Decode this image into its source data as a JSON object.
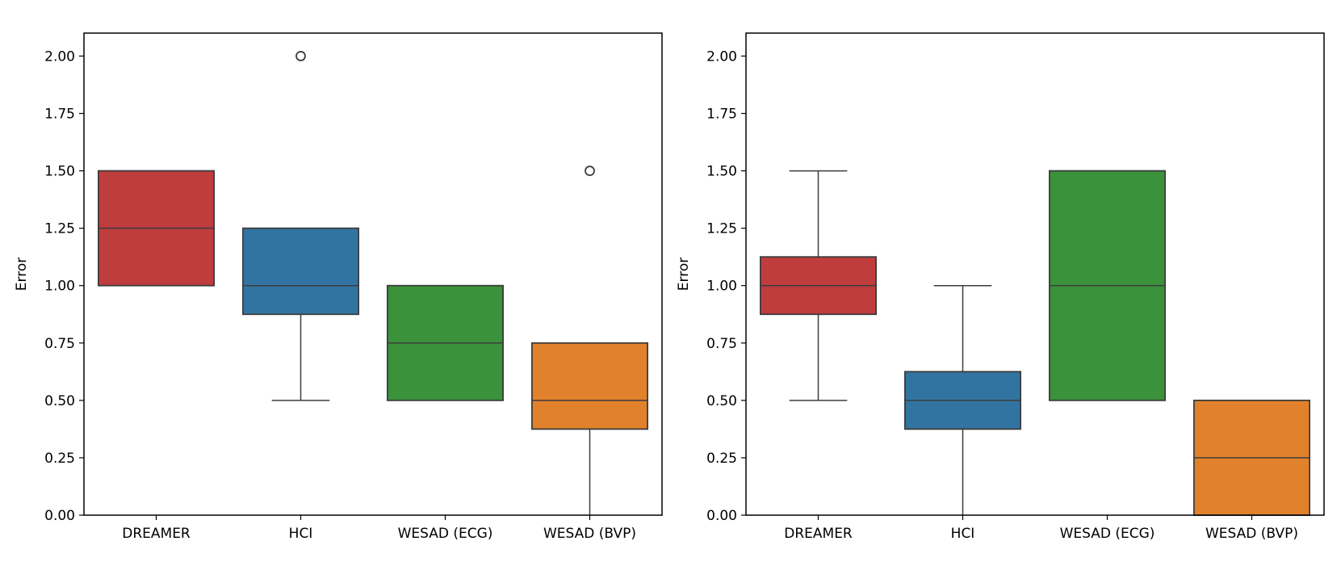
{
  "chart_data": [
    {
      "type": "box",
      "title": "",
      "xlabel": "",
      "ylabel": "Error",
      "ylim": [
        0,
        2.1
      ],
      "yticks": [
        "0.00",
        "0.25",
        "0.50",
        "0.75",
        "1.00",
        "1.25",
        "1.50",
        "1.75",
        "2.00"
      ],
      "categories": [
        "DREAMER",
        "HCI",
        "WESAD (ECG)",
        "WESAD (BVP)"
      ],
      "boxes": [
        {
          "category": "DREAMER",
          "color": "#c03d3e",
          "whisker_low": 1.0,
          "q1": 1.0,
          "median": 1.25,
          "q3": 1.5,
          "whisker_high": 1.5,
          "outliers": []
        },
        {
          "category": "HCI",
          "color": "#3274a1",
          "whisker_low": 0.5,
          "q1": 0.875,
          "median": 1.0,
          "q3": 1.25,
          "whisker_high": 1.25,
          "outliers": [
            2.0
          ]
        },
        {
          "category": "WESAD (ECG)",
          "color": "#3a923a",
          "whisker_low": 0.5,
          "q1": 0.5,
          "median": 0.75,
          "q3": 1.0,
          "whisker_high": 1.0,
          "outliers": []
        },
        {
          "category": "WESAD (BVP)",
          "color": "#e1812c",
          "whisker_low": 0.0,
          "q1": 0.375,
          "median": 0.5,
          "q3": 0.75,
          "whisker_high": 0.75,
          "outliers": [
            1.5
          ]
        }
      ]
    },
    {
      "type": "box",
      "title": "",
      "xlabel": "",
      "ylabel": "Error",
      "ylim": [
        0,
        2.1
      ],
      "yticks": [
        "0.00",
        "0.25",
        "0.50",
        "0.75",
        "1.00",
        "1.25",
        "1.50",
        "1.75",
        "2.00"
      ],
      "categories": [
        "DREAMER",
        "HCI",
        "WESAD (ECG)",
        "WESAD (BVP)"
      ],
      "boxes": [
        {
          "category": "DREAMER",
          "color": "#c03d3e",
          "whisker_low": 0.5,
          "q1": 0.875,
          "median": 1.0,
          "q3": 1.125,
          "whisker_high": 1.5,
          "outliers": []
        },
        {
          "category": "HCI",
          "color": "#3274a1",
          "whisker_low": 0.0,
          "q1": 0.375,
          "median": 0.5,
          "q3": 0.625,
          "whisker_high": 1.0,
          "outliers": []
        },
        {
          "category": "WESAD (ECG)",
          "color": "#3a923a",
          "whisker_low": 0.5,
          "q1": 0.5,
          "median": 1.0,
          "q3": 1.5,
          "whisker_high": 1.5,
          "outliers": []
        },
        {
          "category": "WESAD (BVP)",
          "color": "#e1812c",
          "whisker_low": 0.0,
          "q1": 0.0,
          "median": 0.25,
          "q3": 0.5,
          "whisker_high": 0.5,
          "outliers": []
        }
      ]
    }
  ]
}
